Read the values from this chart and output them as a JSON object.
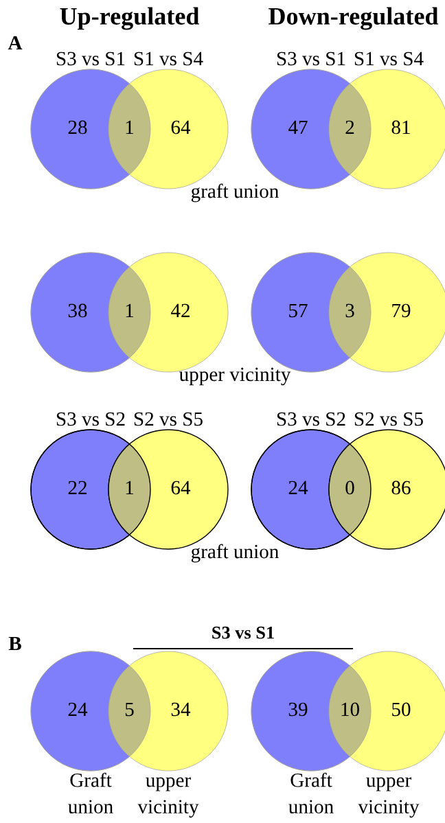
{
  "chart_data": [
    {
      "type": "other",
      "title": "Up-regulated",
      "ylabel": "A",
      "categories": [
        "S3 vs S1",
        null,
        "S1 vs S4"
      ],
      "values": [
        28,
        1,
        64
      ],
      "colors": [
        "#7f7ffc",
        "#bfbf85",
        "#ffff80"
      ],
      "data_labels": true,
      "annotations": [
        "graft union"
      ]
    },
    {
      "type": "other",
      "title": "Down-regulated",
      "categories": [
        "S3 vs S1",
        null,
        "S1 vs S4"
      ],
      "values": [
        47,
        2,
        81
      ],
      "colors": [
        "#7f7ffc",
        "#bfbf85",
        "#ffff80"
      ],
      "data_labels": true
    },
    {
      "type": "other",
      "categories": [
        null,
        null,
        null
      ],
      "values": [
        38,
        1,
        42
      ],
      "colors": [
        "#7f7ffc",
        "#bfbf85",
        "#ffff80"
      ],
      "data_labels": true,
      "annotations": [
        "upper vicinity"
      ]
    },
    {
      "type": "other",
      "categories": [
        null,
        null,
        null
      ],
      "values": [
        57,
        3,
        79
      ],
      "colors": [
        "#7f7ffc",
        "#bfbf85",
        "#ffff80"
      ],
      "data_labels": true
    },
    {
      "type": "other",
      "categories": [
        "S3 vs S2",
        null,
        "S2 vs S5"
      ],
      "values": [
        22,
        1,
        64
      ],
      "colors": [
        "#7f7ffc",
        "#bfbf85",
        "#ffff80"
      ],
      "data_labels": true,
      "annotations": [
        "graft union"
      ]
    },
    {
      "type": "other",
      "categories": [
        "S3 vs S2",
        null,
        "S2 vs S5"
      ],
      "values": [
        24,
        0,
        86
      ],
      "colors": [
        "#7f7ffc",
        "#bfbf85",
        "#ffff80"
      ],
      "data_labels": true
    },
    {
      "type": "other",
      "title": "S3 vs S1",
      "ylabel": "B",
      "categories": [
        "Graft\nunion",
        null,
        "upper\nvicinity"
      ],
      "values": [
        24,
        5,
        34
      ],
      "colors": [
        "#7f7ffc",
        "#bfbf85",
        "#ffff80"
      ],
      "data_labels": true
    },
    {
      "type": "other",
      "categories": [
        "Graft\nunion",
        null,
        "upper\nvicinity"
      ],
      "values": [
        39,
        10,
        50
      ],
      "colors": [
        "#7f7ffc",
        "#bfbf85",
        "#ffff80"
      ],
      "data_labels": true
    }
  ]
}
